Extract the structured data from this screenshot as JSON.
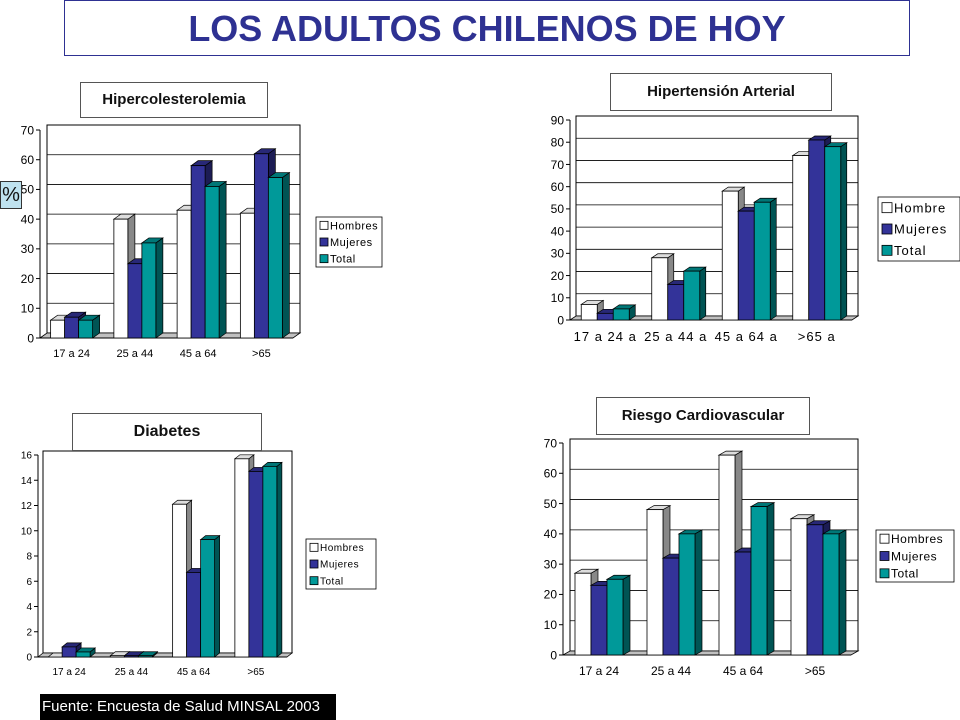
{
  "page": {
    "title": "LOS ADULTOS CHILENOS DE HOY",
    "percent_label": "%",
    "footnote": "Fuente: Encuesta de Salud MINSAL 2003"
  },
  "colors": {
    "hombres": "#ffffff",
    "mujeres": "#333399",
    "total": "#009999",
    "title": "#2e3192"
  },
  "chart_data": [
    {
      "type": "bar",
      "title": "Hipercolesterolemia",
      "categories": [
        "17 a 24",
        "25 a 44",
        "45 a 64",
        ">65"
      ],
      "series": [
        {
          "name": "Hombres",
          "values": [
            6,
            40,
            43,
            42
          ]
        },
        {
          "name": "Mujeres",
          "values": [
            7,
            25,
            58,
            62
          ]
        },
        {
          "name": "Total",
          "values": [
            6,
            32,
            51,
            54
          ]
        }
      ],
      "ylim": [
        0,
        70
      ],
      "yticks": [
        0,
        10,
        20,
        30,
        40,
        50,
        60,
        70
      ],
      "ylabel": "%",
      "grid": true,
      "legend": "right"
    },
    {
      "type": "bar",
      "title": "Hipertensión Arterial",
      "categories": [
        "17 a 24 a",
        "25 a 44 a",
        "45 a 64 a",
        ">65 a"
      ],
      "series": [
        {
          "name": "Hombre",
          "values": [
            7,
            28,
            58,
            74
          ]
        },
        {
          "name": "Mujeres",
          "values": [
            3,
            16,
            49,
            81
          ]
        },
        {
          "name": "Total",
          "values": [
            5,
            22,
            53,
            78
          ]
        }
      ],
      "ylim": [
        0,
        90
      ],
      "yticks": [
        0,
        10,
        20,
        30,
        40,
        50,
        60,
        70,
        80,
        90
      ],
      "grid": true,
      "legend": "right"
    },
    {
      "type": "bar",
      "title": "Diabetes",
      "categories": [
        "17 a 24",
        "25 a 44",
        "45 a 64",
        ">65"
      ],
      "series": [
        {
          "name": "Hombres",
          "values": [
            0,
            0.1,
            12.1,
            15.7
          ]
        },
        {
          "name": "Mujeres",
          "values": [
            0.8,
            0.1,
            6.7,
            14.7
          ]
        },
        {
          "name": "Total",
          "values": [
            0.4,
            0.1,
            9.3,
            15.1
          ]
        }
      ],
      "ylim": [
        0,
        16
      ],
      "yticks": [
        0,
        2,
        4,
        6,
        8,
        10,
        12,
        14,
        16
      ],
      "grid": false,
      "legend": "right"
    },
    {
      "type": "bar",
      "title": "Riesgo Cardiovascular",
      "categories": [
        "17 a 24",
        "25 a 44",
        "45 a 64",
        ">65"
      ],
      "series": [
        {
          "name": "Hombres",
          "values": [
            27,
            48,
            66,
            45
          ]
        },
        {
          "name": "Mujeres",
          "values": [
            23,
            32,
            34,
            43
          ]
        },
        {
          "name": "Total",
          "values": [
            25,
            40,
            49,
            40
          ]
        }
      ],
      "ylim": [
        0,
        70
      ],
      "yticks": [
        0,
        10,
        20,
        30,
        40,
        50,
        60,
        70
      ],
      "grid": true,
      "legend": "right"
    }
  ]
}
